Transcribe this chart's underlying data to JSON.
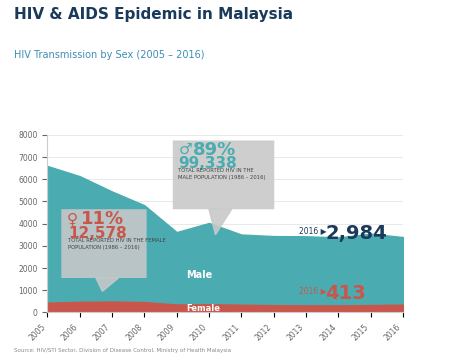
{
  "title": "HIV & AIDS Epidemic in Malaysia",
  "subtitle": "HIV Transmission by Sex (2005 – 2016)",
  "source": "Source: HIV/STI Sector, Division of Disease Control, Ministry of Health Malaysia",
  "years": [
    2005,
    2006,
    2007,
    2008,
    2009,
    2010,
    2011,
    2012,
    2013,
    2014,
    2015,
    2016
  ],
  "male_values": [
    6100,
    5600,
    4900,
    4300,
    3200,
    3600,
    3100,
    3050,
    3050,
    3000,
    3150,
    2984
  ],
  "female_values": [
    500,
    540,
    550,
    530,
    420,
    430,
    410,
    390,
    380,
    380,
    395,
    413
  ],
  "male_color": "#4AACB0",
  "female_color": "#C9564A",
  "bg_color": "#FFFFFF",
  "title_color": "#1A3A5C",
  "subtitle_color": "#3D8EB5",
  "ylim": [
    0,
    8000
  ],
  "yticks": [
    0,
    1000,
    2000,
    3000,
    4000,
    5000,
    6000,
    7000,
    8000
  ],
  "male_pct": "89%",
  "male_total": "99,338",
  "male_label1": "TOTAL REPORTED HIV IN THE",
  "male_label2": "MALE POPULATION (1986 – 2016)",
  "female_pct": "11%",
  "female_total": "12,578",
  "female_label1": "TOTAL REPORTED HIV IN THE FEMALE",
  "female_label2": "POPULATION (1986 – 2016)",
  "annotation_2016_male": "2,984",
  "annotation_2016_female": "413",
  "male_area_label": "Male",
  "female_area_label": "Female",
  "callout_bg": "#C8C8C8"
}
